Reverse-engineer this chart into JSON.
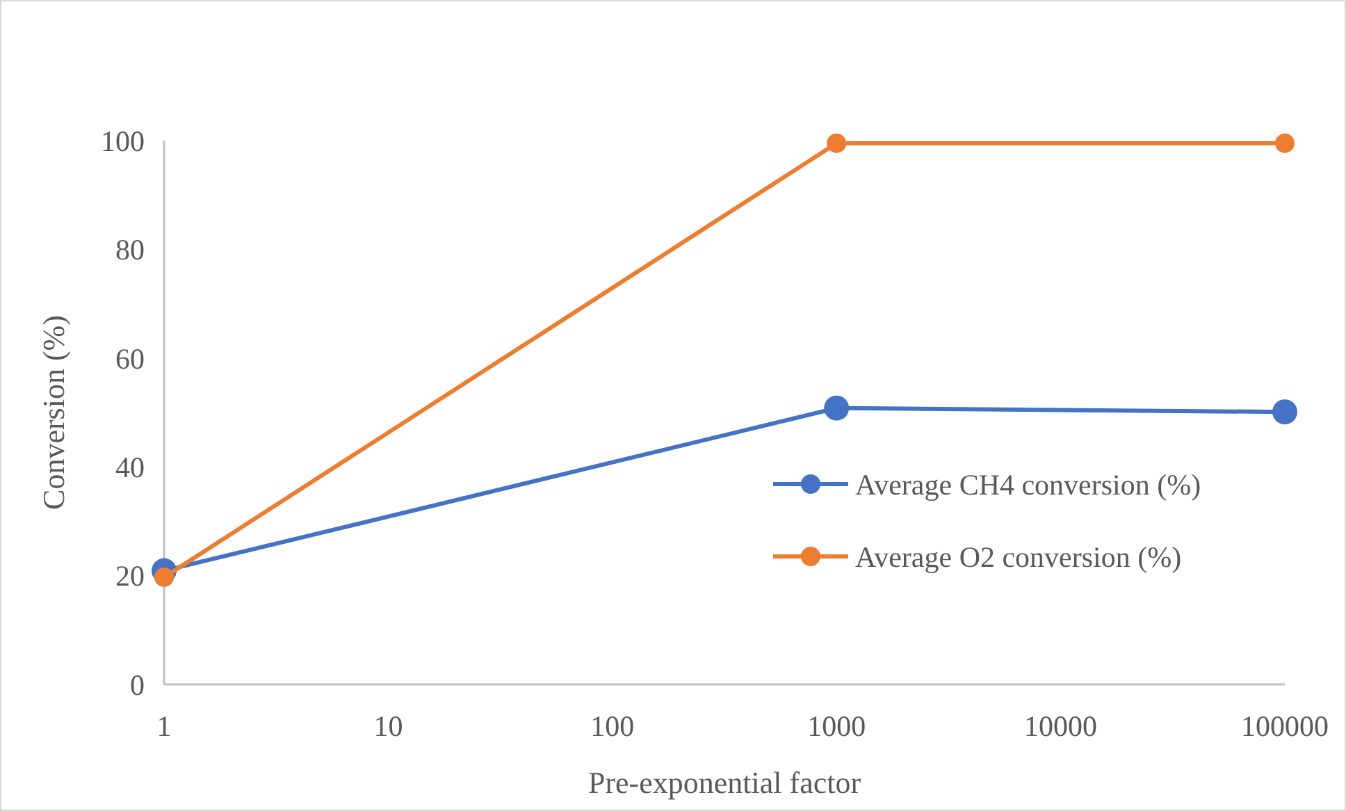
{
  "chart_data": {
    "type": "line",
    "xlabel": "Pre-exponential factor",
    "ylabel": "Conversion (%)",
    "x": [
      1,
      1000,
      100000
    ],
    "log": "x",
    "series": [
      {
        "name": "Average CH4 conversion (%)",
        "color": "#4472c4",
        "values": [
          20.9,
          50.8,
          50.1
        ]
      },
      {
        "name": "Average O2 conversion (%)",
        "color": "#ed7d31",
        "values": [
          19.7,
          99.5,
          99.5
        ]
      }
    ],
    "xlim": [
      1,
      100000
    ],
    "xticks": [
      1,
      10,
      100,
      1000,
      10000,
      100000
    ],
    "ylim": [
      0,
      100
    ],
    "yticks": [
      0,
      20,
      40,
      60,
      80,
      100
    ],
    "grid": false,
    "legend": "right",
    "marker": "circle",
    "line_style": "solid"
  }
}
